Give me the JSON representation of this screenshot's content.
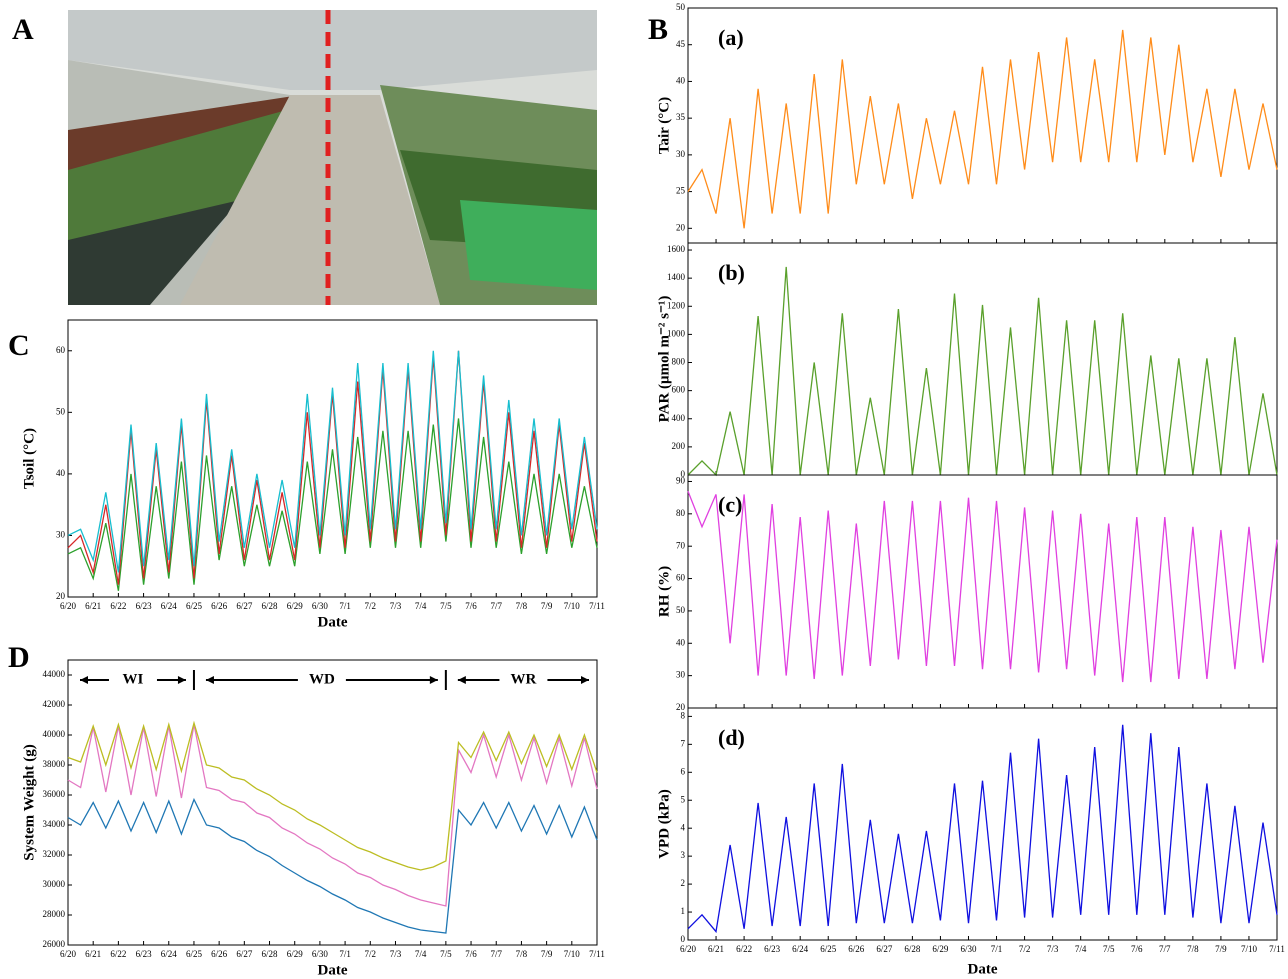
{
  "panel_labels": [
    "A",
    "B",
    "C",
    "D"
  ],
  "chart_data": [
    {
      "type": "stacked-line-panels",
      "xlabel": "Date",
      "categories": [
        "6/20",
        null,
        "6/21",
        null,
        "6/22",
        null,
        "6/23",
        null,
        "6/24",
        null,
        "6/25",
        null,
        "6/26",
        null,
        "6/27",
        null,
        "6/28",
        null,
        "6/29",
        null,
        "6/30",
        null,
        "7/1",
        null,
        "7/2",
        null,
        "7/3",
        null,
        "7/4",
        null,
        "7/5",
        null,
        "7/6",
        null,
        "7/7",
        null,
        "7/8",
        null,
        "7/9",
        null,
        "7/10",
        null,
        "7/11"
      ],
      "subplots": [
        {
          "label": "(a)",
          "ylabel": "Tair (°C)",
          "color": "#ff8c1a",
          "ylim": [
            18,
            50
          ],
          "yticks": [
            20,
            25,
            30,
            35,
            40,
            45,
            50
          ],
          "values": [
            25,
            28,
            22,
            35,
            20,
            39,
            22,
            37,
            22,
            41,
            22,
            43,
            26,
            38,
            26,
            37,
            24,
            35,
            26,
            36,
            26,
            42,
            26,
            43,
            28,
            44,
            29,
            46,
            29,
            43,
            29,
            47,
            29,
            46,
            30,
            45,
            29,
            39,
            27,
            39,
            28,
            37,
            28
          ]
        },
        {
          "label": "(b)",
          "ylabel": "PAR (μmol m⁻² s⁻¹)",
          "color": "#5aa02c",
          "ylim": [
            0,
            1650
          ],
          "yticks": [
            0,
            200,
            400,
            600,
            800,
            1000,
            1200,
            1400,
            1600
          ],
          "values": [
            0,
            100,
            0,
            450,
            0,
            1130,
            0,
            1480,
            0,
            800,
            0,
            1150,
            0,
            550,
            0,
            1180,
            0,
            760,
            0,
            1290,
            0,
            1210,
            0,
            1050,
            0,
            1260,
            0,
            1100,
            0,
            1100,
            0,
            1150,
            0,
            850,
            0,
            830,
            0,
            830,
            0,
            980,
            0,
            580,
            0
          ]
        },
        {
          "label": "(c)",
          "ylabel": "RH (%)",
          "color": "#e040e0",
          "ylim": [
            20,
            92
          ],
          "yticks": [
            20,
            30,
            40,
            50,
            60,
            70,
            80,
            90
          ],
          "values": [
            87,
            76,
            86,
            40,
            86,
            30,
            83,
            30,
            79,
            29,
            81,
            30,
            77,
            33,
            84,
            35,
            84,
            33,
            84,
            33,
            85,
            32,
            84,
            32,
            82,
            31,
            81,
            32,
            80,
            30,
            77,
            28,
            79,
            28,
            79,
            29,
            76,
            29,
            75,
            32,
            76,
            34,
            72
          ]
        },
        {
          "label": "(d)",
          "ylabel": "VPD (kPa)",
          "color": "#1010e0",
          "ylim": [
            0,
            8.3
          ],
          "yticks": [
            0,
            1,
            2,
            3,
            4,
            5,
            6,
            7,
            8
          ],
          "values": [
            0.4,
            0.9,
            0.3,
            3.4,
            0.4,
            4.9,
            0.5,
            4.4,
            0.5,
            5.6,
            0.5,
            6.3,
            0.6,
            4.3,
            0.6,
            3.8,
            0.6,
            3.9,
            0.7,
            5.6,
            0.6,
            5.7,
            0.7,
            6.7,
            0.8,
            7.2,
            0.8,
            5.9,
            0.9,
            6.9,
            0.9,
            7.7,
            0.9,
            7.4,
            0.9,
            6.9,
            0.8,
            5.6,
            0.6,
            4.8,
            0.6,
            4.2,
            0.9
          ]
        }
      ]
    },
    {
      "type": "line",
      "ylabel": "Tsoil (°C)",
      "xlabel": "Date",
      "ylim": [
        20,
        65
      ],
      "yticks": [
        20,
        30,
        40,
        50,
        60
      ],
      "categories": [
        "6/20",
        null,
        "6/21",
        null,
        "6/22",
        null,
        "6/23",
        null,
        "6/24",
        null,
        "6/25",
        null,
        "6/26",
        null,
        "6/27",
        null,
        "6/28",
        null,
        "6/29",
        null,
        "6/30",
        null,
        "7/1",
        null,
        "7/2",
        null,
        "7/3",
        null,
        "7/4",
        null,
        "7/5",
        null,
        "7/6",
        null,
        "7/7",
        null,
        "7/8",
        null,
        "7/9",
        null,
        "7/10",
        null,
        "7/11"
      ],
      "series": [
        {
          "color": "#2ca02c",
          "values": [
            27,
            28,
            23,
            32,
            21,
            40,
            22,
            38,
            23,
            42,
            22,
            43,
            26,
            38,
            25,
            35,
            25,
            34,
            25,
            42,
            27,
            44,
            27,
            46,
            28,
            47,
            28,
            47,
            28,
            48,
            29,
            49,
            28,
            46,
            28,
            42,
            27,
            40,
            27,
            40,
            28,
            38,
            28
          ]
        },
        {
          "color": "#d62728",
          "values": [
            28,
            30,
            24,
            35,
            22,
            47,
            23,
            44,
            24,
            48,
            23,
            52,
            27,
            43,
            26,
            39,
            26,
            37,
            26,
            50,
            28,
            53,
            28,
            55,
            29,
            57,
            29,
            57,
            29,
            59,
            30,
            60,
            29,
            55,
            29,
            50,
            28,
            47,
            28,
            48,
            29,
            45,
            29
          ]
        },
        {
          "color": "#17becf",
          "values": [
            30,
            31,
            26,
            37,
            24,
            48,
            25,
            45,
            26,
            49,
            25,
            53,
            29,
            44,
            28,
            40,
            28,
            39,
            28,
            53,
            30,
            54,
            30,
            58,
            31,
            58,
            31,
            58,
            31,
            60,
            32,
            60,
            31,
            56,
            31,
            52,
            30,
            49,
            30,
            49,
            31,
            46,
            31
          ]
        }
      ]
    },
    {
      "type": "line",
      "ylabel": "System Weight (g)",
      "xlabel": "Date",
      "ylim": [
        26000,
        45000
      ],
      "yticks": [
        26000,
        28000,
        30000,
        32000,
        34000,
        36000,
        38000,
        40000,
        42000,
        44000
      ],
      "annotations": [
        "WI",
        "WD",
        "WR"
      ],
      "categories": [
        "6/20",
        null,
        "6/21",
        null,
        "6/22",
        null,
        "6/23",
        null,
        "6/24",
        null,
        "6/25",
        null,
        "6/26",
        null,
        "6/27",
        null,
        "6/28",
        null,
        "6/29",
        null,
        "6/30",
        null,
        "7/1",
        null,
        "7/2",
        null,
        "7/3",
        null,
        "7/4",
        null,
        "7/5",
        null,
        "7/6",
        null,
        "7/7",
        null,
        "7/8",
        null,
        "7/9",
        null,
        "7/10",
        null,
        "7/11"
      ],
      "series": [
        {
          "color": "#1f77b4",
          "values": [
            34500,
            34000,
            35500,
            33800,
            35600,
            33600,
            35500,
            33500,
            35600,
            33400,
            35700,
            34000,
            33800,
            33200,
            32900,
            32300,
            31900,
            31300,
            30800,
            30300,
            29900,
            29400,
            29000,
            28500,
            28200,
            27800,
            27500,
            27200,
            27000,
            26900,
            26800,
            35000,
            34000,
            35500,
            33800,
            35500,
            33600,
            35300,
            33400,
            35300,
            33200,
            35200,
            33000
          ]
        },
        {
          "color": "#e377c2",
          "values": [
            37000,
            36500,
            40500,
            36200,
            40600,
            36000,
            40500,
            35900,
            40600,
            35800,
            40700,
            36500,
            36300,
            35700,
            35500,
            34800,
            34500,
            33800,
            33400,
            32800,
            32400,
            31800,
            31400,
            30800,
            30500,
            30000,
            29700,
            29300,
            29000,
            28800,
            28600,
            39000,
            37500,
            40000,
            37200,
            40000,
            37000,
            39800,
            36800,
            39800,
            36600,
            39800,
            36400
          ]
        },
        {
          "color": "#bcbd22",
          "values": [
            38500,
            38200,
            40600,
            38000,
            40700,
            37800,
            40600,
            37700,
            40700,
            37600,
            40800,
            38000,
            37800,
            37200,
            37000,
            36400,
            36000,
            35400,
            35000,
            34400,
            34000,
            33500,
            33000,
            32500,
            32200,
            31800,
            31500,
            31200,
            31000,
            31200,
            31600,
            39500,
            38500,
            40200,
            38300,
            40200,
            38100,
            40000,
            37900,
            40000,
            37700,
            40000,
            37500
          ]
        }
      ]
    }
  ]
}
